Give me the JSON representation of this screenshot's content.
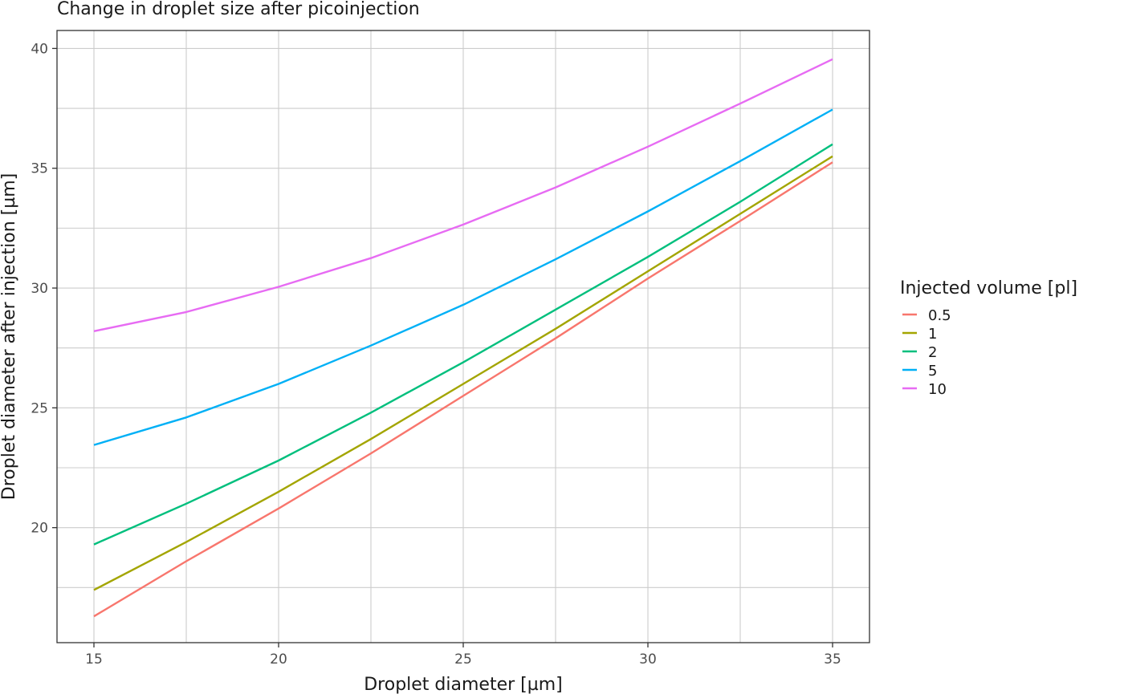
{
  "chart_data": {
    "type": "line",
    "title": "Change in droplet size after picoinjection",
    "xlabel": "Droplet diameter [µm]",
    "ylabel": "Droplet diameter after injection [µm]",
    "xlim": [
      14,
      36
    ],
    "ylim": [
      15.2,
      40.75
    ],
    "x_ticks": [
      15,
      20,
      25,
      30,
      35
    ],
    "y_ticks": [
      20,
      25,
      30,
      35,
      40
    ],
    "grid": true,
    "legend": {
      "title": "Injected volume [pl]",
      "position": "right"
    },
    "x": [
      15,
      17.5,
      20,
      22.5,
      25,
      27.5,
      30,
      32.5,
      35
    ],
    "series": [
      {
        "name": "0.5",
        "color": "#F8766D",
        "values": [
          16.3,
          18.6,
          20.8,
          23.1,
          25.5,
          27.9,
          30.4,
          32.8,
          35.25
        ]
      },
      {
        "name": "1",
        "color": "#A3A500",
        "values": [
          17.4,
          19.4,
          21.5,
          23.7,
          26.0,
          28.3,
          30.7,
          33.1,
          35.5
        ]
      },
      {
        "name": "2",
        "color": "#00BF7D",
        "values": [
          19.3,
          21.0,
          22.8,
          24.8,
          26.9,
          29.1,
          31.3,
          33.6,
          36.0
        ]
      },
      {
        "name": "5",
        "color": "#00B0F6",
        "values": [
          23.45,
          24.6,
          26.0,
          27.6,
          29.3,
          31.2,
          33.2,
          35.3,
          37.45
        ]
      },
      {
        "name": "10",
        "color": "#E76BF3",
        "values": [
          28.2,
          29.0,
          30.05,
          31.25,
          32.65,
          34.2,
          35.9,
          37.7,
          39.55
        ]
      }
    ]
  }
}
